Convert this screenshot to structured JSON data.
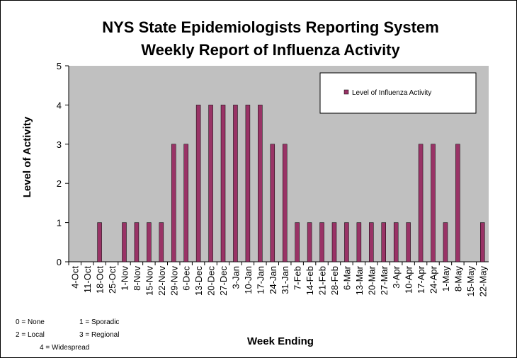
{
  "chart_data": {
    "type": "bar",
    "title": [
      "NYS State Epidemiologists Reporting System",
      "Weekly Report of Influenza Activity"
    ],
    "x_label": "Week Ending",
    "y_label": "Level of Activity",
    "categories": [
      "4-Oct",
      "11-Oct",
      "18-Oct",
      "25-Oct",
      "1-Nov",
      "8-Nov",
      "15-Nov",
      "22-Nov",
      "29-Nov",
      "6-Dec",
      "13-Dec",
      "20-Dec",
      "27-Dec",
      "3-Jan",
      "10-Jan",
      "17-Jan",
      "24-Jan",
      "31-Jan",
      "7-Feb",
      "14-Feb",
      "21-Feb",
      "28-Feb",
      "6-Mar",
      "13-Mar",
      "20-Mar",
      "27-Mar",
      "3-Apr",
      "10-Apr",
      "17-Apr",
      "24-Apr",
      "1-May",
      "8-May",
      "15-May",
      "22-May"
    ],
    "series": [
      {
        "name": "Level of Influenza Activity",
        "color": "#993366",
        "values": [
          0,
          0,
          1,
          0,
          1,
          1,
          1,
          1,
          3,
          3,
          4,
          4,
          4,
          4,
          4,
          4,
          3,
          3,
          1,
          1,
          1,
          1,
          1,
          1,
          1,
          1,
          1,
          1,
          3,
          3,
          1,
          3,
          0,
          1
        ]
      }
    ],
    "ylim": [
      0,
      5
    ],
    "yticks": [
      0,
      1,
      2,
      3,
      4,
      5
    ],
    "legend": "upper right",
    "notes": [
      "0 = None",
      "1 = Sporadic",
      "2 = Local",
      "3 = Regional",
      "4 = Widespread"
    ]
  }
}
